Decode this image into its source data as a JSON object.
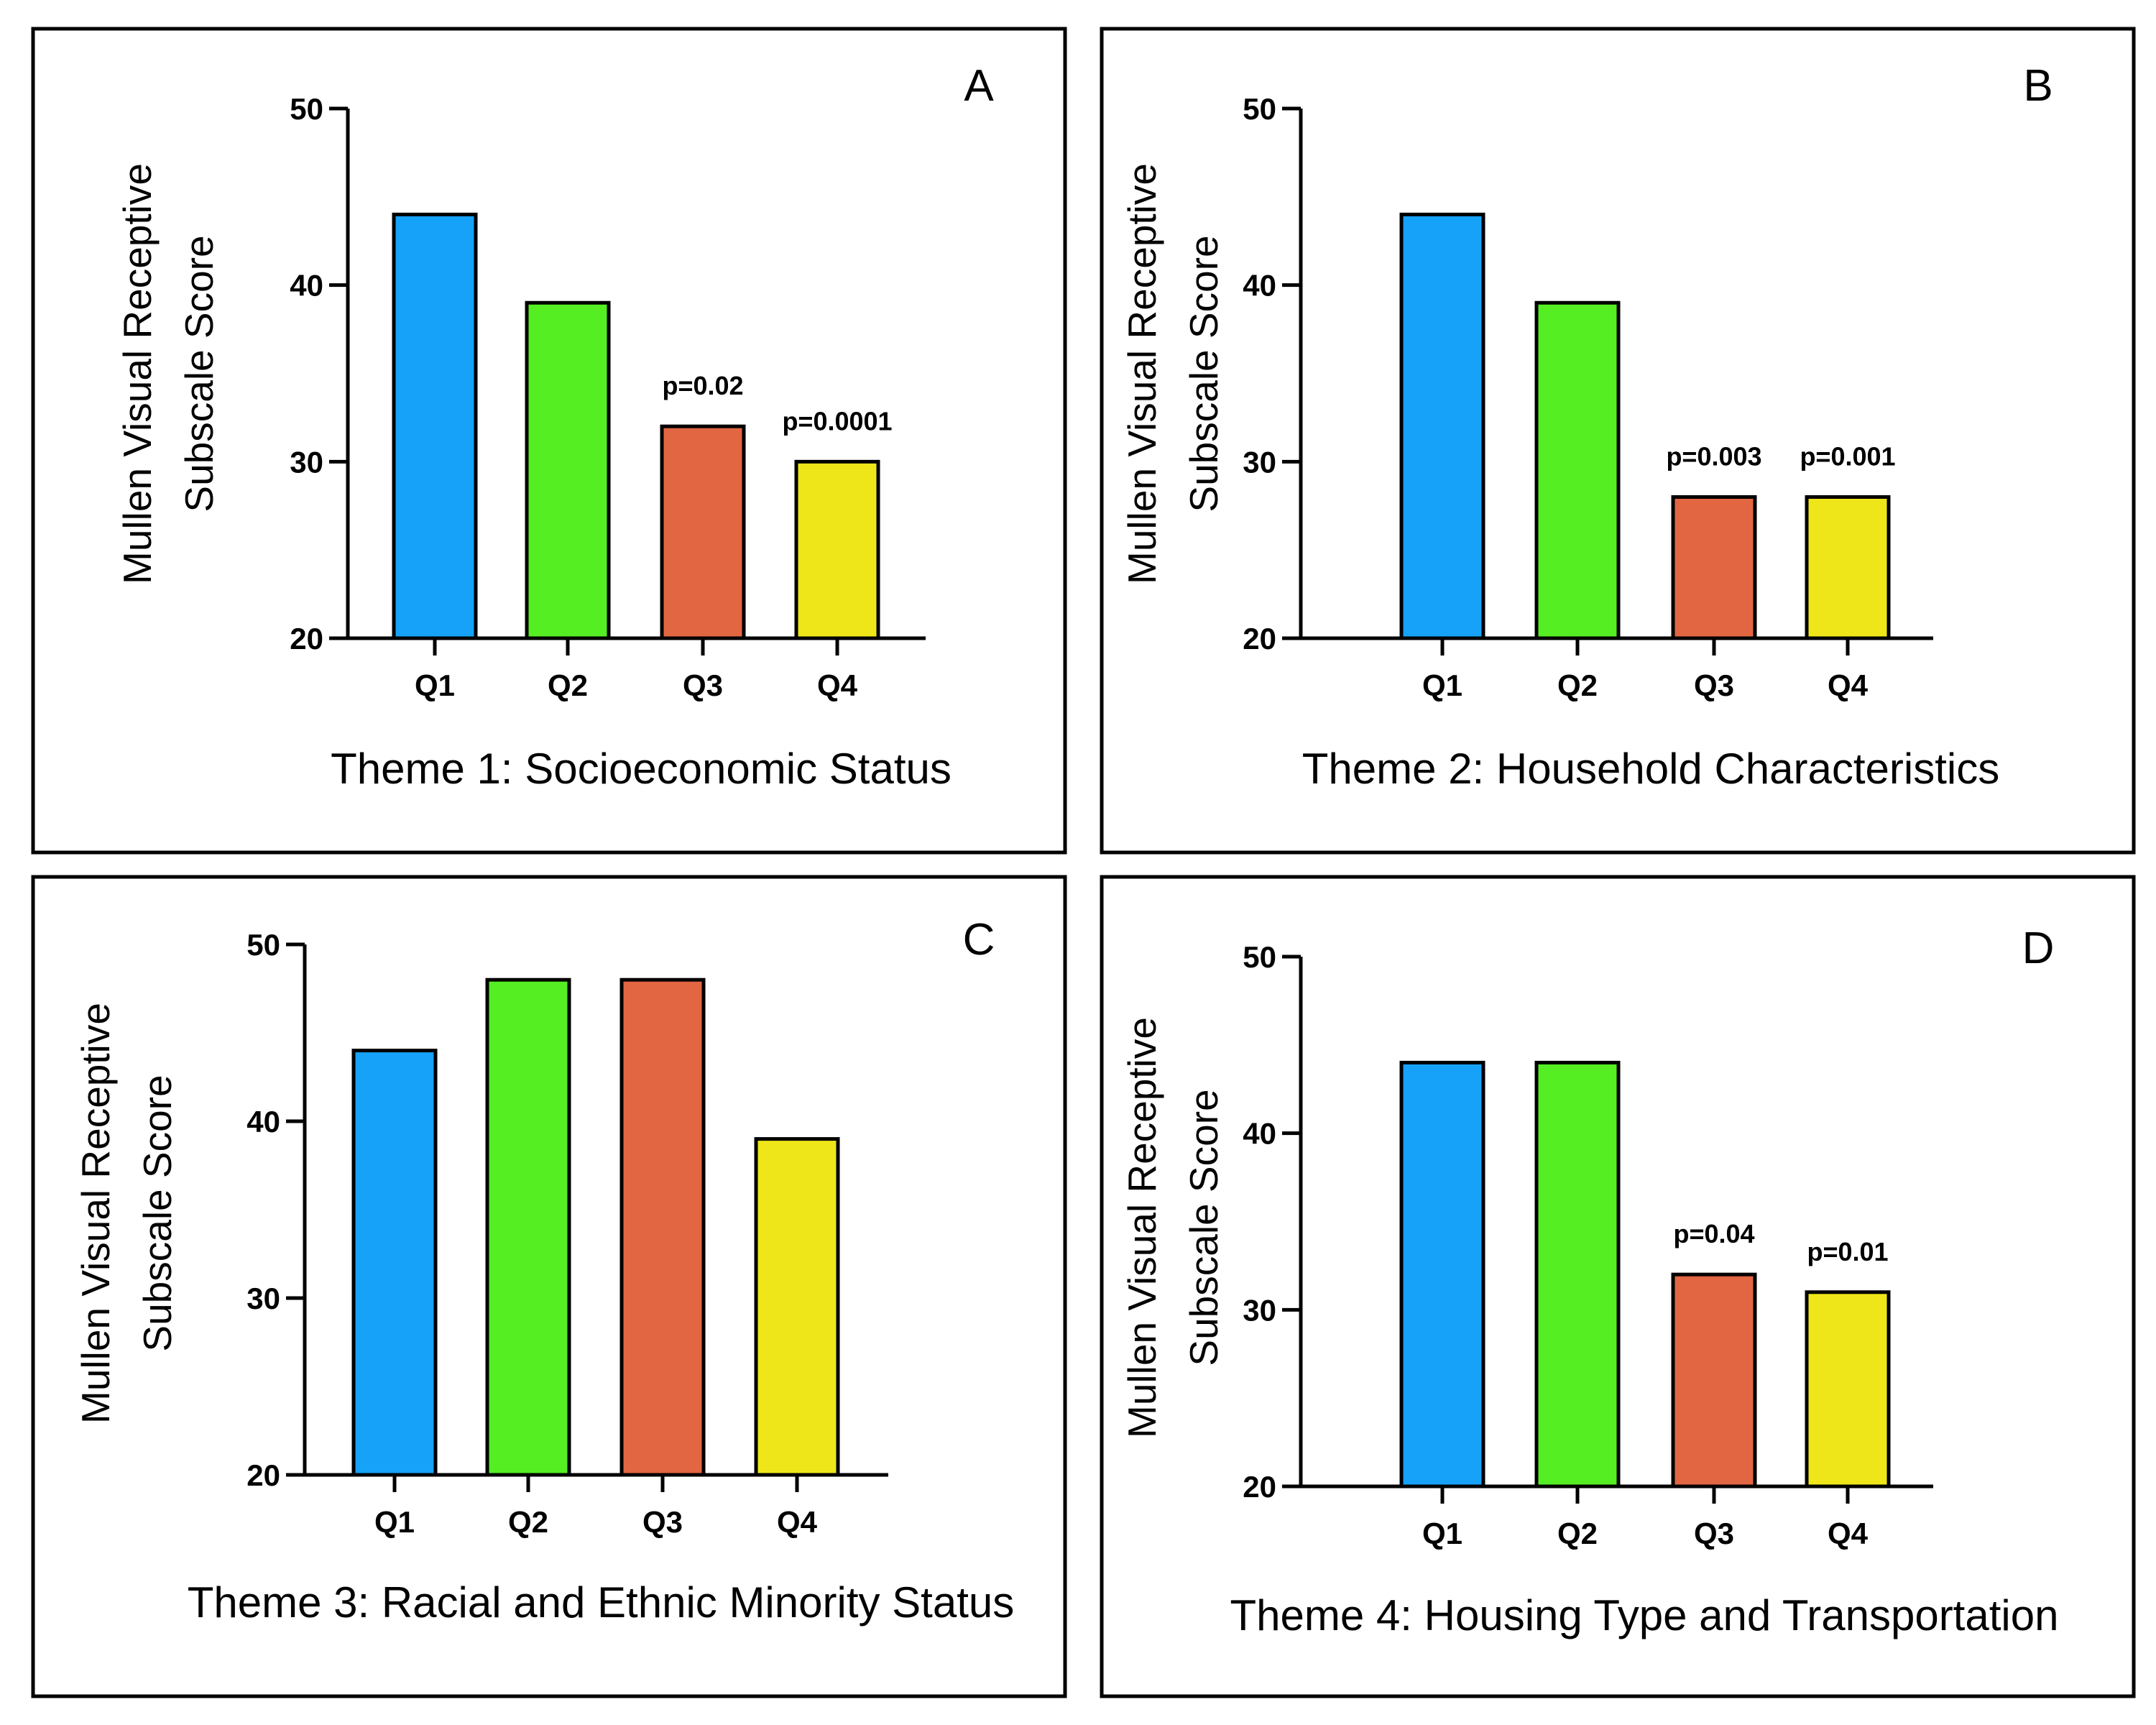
{
  "chart_data": [
    {
      "type": "bar",
      "panel_label": "A",
      "caption": "Theme 1: Socioeconomic Status",
      "ylabel": [
        "Mullen Visual Receptive",
        "Subscale Score"
      ],
      "xlabel": "",
      "categories": [
        "Q1",
        "Q2",
        "Q3",
        "Q4"
      ],
      "values": [
        44,
        39,
        32,
        30
      ],
      "colors": [
        "#16a2f8",
        "#55ee22",
        "#e26642",
        "#eee619"
      ],
      "annotations": [
        "",
        "",
        "p=0.02",
        "p=0.0001"
      ],
      "ylim": [
        20,
        50
      ],
      "yticks": [
        20,
        30,
        40,
        50
      ]
    },
    {
      "type": "bar",
      "panel_label": "B",
      "caption": "Theme 2: Household Characteristics",
      "ylabel": [
        "Mullen Visual Receptive",
        "Subscale Score"
      ],
      "xlabel": "",
      "categories": [
        "Q1",
        "Q2",
        "Q3",
        "Q4"
      ],
      "values": [
        44,
        39,
        28,
        28
      ],
      "colors": [
        "#16a2f8",
        "#55ee22",
        "#e26642",
        "#eee619"
      ],
      "annotations": [
        "",
        "",
        "p=0.003",
        "p=0.001"
      ],
      "ylim": [
        20,
        50
      ],
      "yticks": [
        20,
        30,
        40,
        50
      ]
    },
    {
      "type": "bar",
      "panel_label": "C",
      "caption": "Theme 3: Racial and Ethnic Minority Status",
      "ylabel": [
        "Mullen Visual Receptive",
        "Subscale Score"
      ],
      "xlabel": "",
      "categories": [
        "Q1",
        "Q2",
        "Q3",
        "Q4"
      ],
      "values": [
        44,
        48,
        48,
        39
      ],
      "colors": [
        "#16a2f8",
        "#55ee22",
        "#e26642",
        "#eee619"
      ],
      "annotations": [
        "",
        "",
        "",
        ""
      ],
      "ylim": [
        20,
        50
      ],
      "yticks": [
        20,
        30,
        40,
        50
      ]
    },
    {
      "type": "bar",
      "panel_label": "D",
      "caption": "Theme 4: Housing Type and Transportation",
      "ylabel": [
        "Mullen Visual Receptive",
        "Subscale Score"
      ],
      "xlabel": "",
      "categories": [
        "Q1",
        "Q2",
        "Q3",
        "Q4"
      ],
      "values": [
        44,
        44,
        32,
        31
      ],
      "colors": [
        "#16a2f8",
        "#55ee22",
        "#e26642",
        "#eee619"
      ],
      "annotations": [
        "",
        "",
        "p=0.04",
        "p=0.01"
      ],
      "ylim": [
        20,
        50
      ],
      "yticks": [
        20,
        30,
        40,
        50
      ]
    }
  ]
}
